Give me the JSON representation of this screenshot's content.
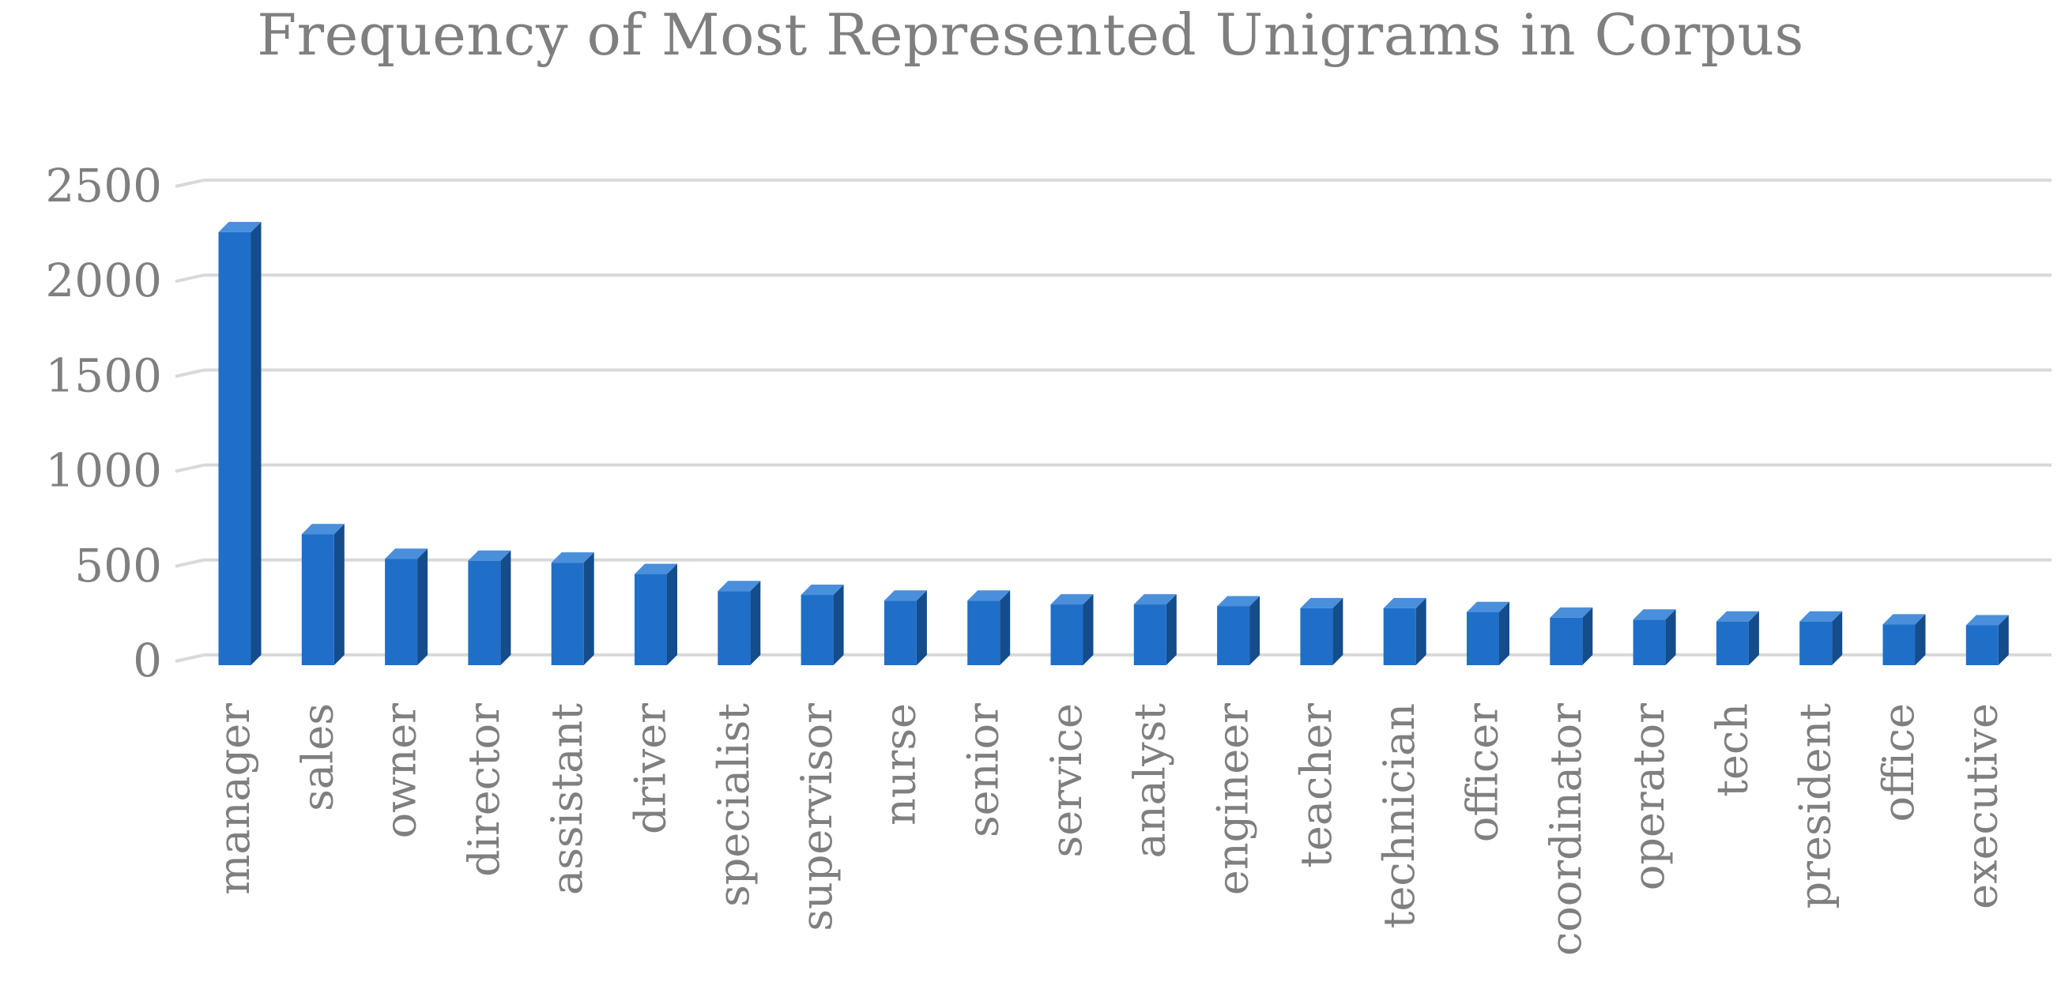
{
  "chart_data": {
    "type": "bar",
    "title": "Frequency of Most Represented Unigrams in Corpus",
    "xlabel": "",
    "ylabel": "",
    "categories": [
      "manager",
      "sales",
      "owner",
      "director",
      "assistant",
      "driver",
      "specialist",
      "supervisor",
      "nurse",
      "senior",
      "service",
      "analyst",
      "engineer",
      "teacher",
      "technician",
      "officer",
      "coordinator",
      "operator",
      "tech",
      "president",
      "office",
      "executive"
    ],
    "values": [
      2280,
      690,
      560,
      550,
      540,
      480,
      390,
      370,
      340,
      340,
      320,
      320,
      310,
      300,
      300,
      280,
      250,
      240,
      230,
      230,
      215,
      210
    ],
    "yticks": [
      "0",
      "500",
      "1000",
      "1500",
      "2000",
      "2500"
    ],
    "ylim": [
      0,
      2500
    ],
    "grid": true,
    "legend": "none",
    "bar_style": "3d-column",
    "colors": {
      "bar_front": "#1f6fc9",
      "bar_side": "#144c8c",
      "bar_top": "#4a8fdb",
      "grid": "#d9d9d9",
      "text": "#7f7f7f"
    }
  }
}
